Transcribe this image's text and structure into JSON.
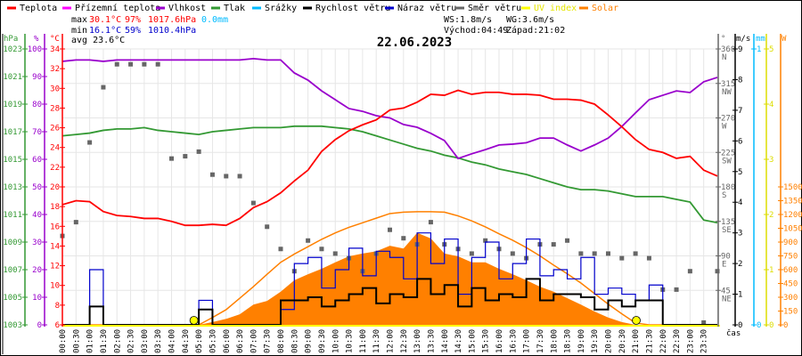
{
  "chart_data": {
    "type": "line",
    "title": "22.06.2023",
    "xlabel": "čas",
    "legend_position": "top",
    "legend": [
      {
        "name": "Teplota",
        "color": "#ff0000"
      },
      {
        "name": "Přízemní teplota",
        "color": "#ff00ff"
      },
      {
        "name": "Vlhkost",
        "color": "#9900cc"
      },
      {
        "name": "Tlak",
        "color": "#339933"
      },
      {
        "name": "Srážky",
        "color": "#00bbff"
      },
      {
        "name": "Rychlost větru",
        "color": "#000000"
      },
      {
        "name": "Náraz větru",
        "color": "#0000cc"
      },
      {
        "name": "Směr větru",
        "color": "#666666"
      },
      {
        "name": "UV index",
        "color": "#ffff00"
      },
      {
        "name": "Solar",
        "color": "#ff8000"
      }
    ],
    "stats": {
      "max_label": "max",
      "max_temp": "30.1°C",
      "max_hum": "97%",
      "max_press": "1017.6hPa",
      "rain": "0.0mm",
      "min_label": "min",
      "min_temp": "16.1°C",
      "min_hum": "59%",
      "min_press": "1010.4hPa",
      "avg": "avg 23.6°C",
      "ws": "WS:1.8m/s",
      "wg": "WG:3.6m/s",
      "sunrise": "Východ:04:49",
      "sunset": "Západ:21:02"
    },
    "x_step_hours": 0.5,
    "x_ticks": [
      "00:00",
      "00:30",
      "01:00",
      "01:30",
      "02:00",
      "02:30",
      "03:00",
      "03:30",
      "04:00",
      "04:30",
      "05:00",
      "05:30",
      "06:00",
      "06:30",
      "07:00",
      "07:30",
      "08:00",
      "08:30",
      "09:00",
      "09:30",
      "10:00",
      "10:30",
      "11:00",
      "11:30",
      "12:00",
      "12:30",
      "13:00",
      "13:30",
      "14:00",
      "14:30",
      "15:00",
      "15:30",
      "16:00",
      "16:30",
      "17:00",
      "17:30",
      "18:00",
      "18:30",
      "19:00",
      "19:30",
      "20:00",
      "20:30",
      "21:00",
      "21:30",
      "22:00",
      "22:30",
      "23:00",
      "23:30"
    ],
    "axes": {
      "pressure": {
        "unit": "hPa",
        "range": [
          1003,
          1023
        ],
        "ticks": [
          "1003",
          "1005",
          "1007",
          "1009",
          "1011",
          "1013",
          "1015",
          "1017",
          "1019",
          "1021",
          "1023"
        ],
        "color": "#339933"
      },
      "humidity": {
        "unit": "%",
        "range": [
          0,
          100
        ],
        "ticks": [
          "0",
          "10",
          "20",
          "30",
          "40",
          "50",
          "60",
          "70",
          "80",
          "90",
          "100"
        ],
        "color": "#9900cc"
      },
      "temperature": {
        "unit": "°C",
        "range": [
          6,
          34
        ],
        "ticks": [
          "6",
          "8",
          "10",
          "12",
          "14",
          "16",
          "18",
          "20",
          "22",
          "24",
          "26",
          "28",
          "30",
          "32",
          "34"
        ],
        "color": "#ff0000"
      },
      "direction": {
        "unit": "°",
        "range": [
          0,
          360
        ],
        "ticks": [
          "45",
          "90",
          "135",
          "180",
          "225",
          "270",
          "315",
          "360"
        ],
        "compass": [
          "NE",
          "E",
          "SE",
          "S",
          "SW",
          "W",
          "NW",
          "N"
        ],
        "color": "#666666"
      },
      "wind": {
        "unit": "m/s",
        "range": [
          0,
          9
        ],
        "ticks": [
          "0",
          "1",
          "2",
          "3",
          "4",
          "5",
          "6",
          "7",
          "8",
          "9"
        ],
        "color": "#000000"
      },
      "rain": {
        "unit": "mm",
        "range": [
          0,
          1
        ],
        "ticks": [
          "0",
          "1"
        ],
        "color": "#00bbff"
      },
      "uv": {
        "unit": "",
        "range": [
          0,
          5
        ],
        "ticks": [
          "0",
          "1",
          "2",
          "3",
          "4",
          "5"
        ],
        "color": "#eeee00"
      },
      "solar": {
        "unit": "W",
        "range": [
          0,
          3000
        ],
        "ticks": [
          "0",
          "150",
          "300",
          "450",
          "600",
          "750",
          "900",
          "1050",
          "1200",
          "1350",
          "1500"
        ],
        "color": "#ff8000"
      }
    },
    "series": [
      {
        "name": "Teplota",
        "axis": "temperature",
        "values": [
          18.2,
          18.6,
          18.5,
          17.5,
          17.1,
          17.0,
          16.8,
          16.8,
          16.5,
          16.1,
          16.1,
          16.2,
          16.1,
          16.8,
          17.9,
          18.5,
          19.4,
          20.6,
          21.7,
          23.6,
          24.8,
          25.7,
          26.3,
          26.8,
          27.8,
          28.0,
          28.6,
          29.4,
          29.3,
          29.8,
          29.4,
          29.6,
          29.6,
          29.4,
          29.4,
          29.3,
          28.9,
          28.9,
          28.8,
          28.4,
          27.3,
          26.1,
          24.8,
          23.8,
          23.5,
          22.9,
          23.1,
          21.7,
          21.1
        ]
      },
      {
        "name": "Vlhkost",
        "axis": "humidity",
        "values": [
          95.5,
          96,
          96,
          95.5,
          96,
          96,
          96,
          96,
          96,
          96,
          96,
          96,
          96,
          96,
          96.5,
          96,
          96,
          91.3,
          88.7,
          84.8,
          81.6,
          78.4,
          77.4,
          75.8,
          75,
          72.6,
          71.6,
          69.4,
          66.8,
          60.3,
          62,
          63.5,
          65.2,
          65.5,
          66,
          67.7,
          67.7,
          65.2,
          63,
          65.2,
          67.7,
          71.9,
          76.8,
          81.6,
          83.2,
          84.8,
          84.2,
          88.1,
          89.7
        ]
      },
      {
        "name": "Tlak",
        "axis": "pressure",
        "values": [
          1016.7,
          1016.8,
          1016.9,
          1017.1,
          1017.2,
          1017.2,
          1017.3,
          1017.1,
          1017.0,
          1016.9,
          1016.8,
          1017.0,
          1017.1,
          1017.2,
          1017.3,
          1017.3,
          1017.3,
          1017.4,
          1017.4,
          1017.4,
          1017.3,
          1017.2,
          1017.0,
          1016.7,
          1016.4,
          1016.1,
          1015.8,
          1015.6,
          1015.3,
          1015.1,
          1014.8,
          1014.6,
          1014.3,
          1014.1,
          1013.9,
          1013.6,
          1013.3,
          1013.0,
          1012.8,
          1012.8,
          1012.7,
          1012.5,
          1012.3,
          1012.3,
          1012.3,
          1012.1,
          1011.9,
          1010.6,
          1010.4
        ]
      },
      {
        "name": "Rychlost větru",
        "axis": "wind",
        "values": [
          0,
          0,
          0.6,
          0,
          0,
          0,
          0,
          0,
          0,
          0,
          0.5,
          0,
          0,
          0,
          0,
          0,
          0.8,
          0.8,
          0.9,
          0.6,
          0.8,
          1.0,
          1.2,
          0.7,
          1.0,
          0.9,
          1.5,
          1.0,
          1.3,
          0.6,
          1.2,
          0.8,
          1.0,
          0.9,
          1.5,
          0.8,
          1.0,
          1.0,
          0.9,
          0.5,
          0.8,
          0.6,
          0.8,
          0.8,
          0,
          0,
          0,
          0,
          0
        ]
      },
      {
        "name": "Náraz větru",
        "axis": "wind",
        "values": [
          0,
          0,
          1.8,
          0,
          0,
          0,
          0,
          0,
          0,
          0,
          0.8,
          0,
          0,
          0,
          0,
          0,
          0.5,
          2.0,
          2.2,
          1.2,
          1.8,
          2.5,
          1.6,
          2.4,
          2.2,
          1.5,
          3.0,
          2.0,
          2.8,
          1.0,
          2.2,
          2.7,
          1.5,
          2.0,
          2.8,
          1.6,
          1.8,
          1.5,
          2.2,
          1.0,
          1.2,
          1.0,
          0.8,
          1.3,
          0,
          0,
          0,
          0,
          0
        ]
      },
      {
        "name": "Směr větru",
        "axis": "direction",
        "values": [
          116,
          134,
          238,
          310,
          340,
          340,
          340,
          340,
          217,
          220,
          226,
          196,
          194,
          194,
          159,
          128,
          99,
          70,
          110,
          99,
          93,
          87,
          70,
          93,
          124,
          113,
          105,
          134,
          105,
          99,
          93,
          110,
          99,
          93,
          87,
          105,
          105,
          110,
          93,
          93,
          93,
          87,
          93,
          87,
          46,
          46,
          70,
          3,
          70
        ]
      },
      {
        "name": "Solar",
        "axis": "solar",
        "values": [
          0,
          0,
          0,
          0,
          0,
          0,
          0,
          0,
          0,
          0,
          0,
          30,
          65,
          115,
          220,
          260,
          360,
          485,
          550,
          610,
          680,
          745,
          775,
          800,
          860,
          830,
          1000,
          940,
          775,
          745,
          680,
          680,
          610,
          550,
          485,
          415,
          360,
          290,
          220,
          145,
          80,
          30,
          0,
          0,
          0,
          0,
          0,
          0,
          0
        ]
      },
      {
        "name": "Solar max",
        "axis": "solar",
        "values": [
          0,
          0,
          0,
          0,
          0,
          0,
          0,
          0,
          0,
          0,
          0,
          80,
          165,
          290,
          415,
          550,
          680,
          770,
          850,
          930,
          1000,
          1060,
          1110,
          1160,
          1210,
          1225,
          1230,
          1230,
          1225,
          1185,
          1130,
          1065,
          990,
          920,
          840,
          750,
          650,
          555,
          455,
          340,
          225,
          120,
          20,
          0,
          0,
          0,
          0,
          0,
          0
        ]
      },
      {
        "name": "UV index",
        "axis": "uv",
        "values": [
          0,
          0,
          0,
          0,
          0,
          0,
          0,
          0,
          0,
          0,
          0,
          0,
          0,
          0,
          0,
          0,
          0,
          0,
          0,
          0,
          0,
          0,
          0,
          0,
          0,
          0,
          0,
          0,
          0,
          0,
          0,
          0,
          0,
          0,
          0,
          0,
          0,
          0,
          0,
          0,
          0,
          0,
          0,
          0,
          0,
          0,
          0,
          0,
          0
        ]
      }
    ],
    "markers": [
      {
        "name": "sunrise",
        "time_h": 4.82
      },
      {
        "name": "sunset",
        "time_h": 21.03
      }
    ]
  }
}
